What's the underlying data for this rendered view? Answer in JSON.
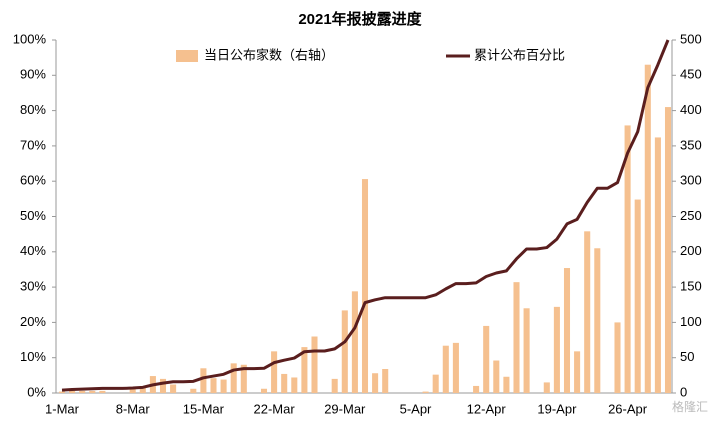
{
  "chart_data": {
    "type": "combo",
    "title": "2021年报披露进度",
    "watermark": "格隆汇",
    "categories": [
      "1-Mar",
      null,
      null,
      null,
      null,
      null,
      null,
      "8-Mar",
      null,
      null,
      null,
      null,
      null,
      null,
      "15-Mar",
      null,
      null,
      null,
      null,
      null,
      null,
      "22-Mar",
      null,
      null,
      null,
      null,
      null,
      null,
      "29-Mar",
      null,
      null,
      null,
      null,
      null,
      null,
      "5-Apr",
      null,
      null,
      null,
      null,
      null,
      null,
      "12-Apr",
      null,
      null,
      null,
      null,
      null,
      null,
      "19-Apr",
      null,
      null,
      null,
      null,
      null,
      null,
      "26-Apr",
      null,
      null,
      null,
      null
    ],
    "series": [
      {
        "name": "当日公布家数（右轴）",
        "type": "bar",
        "axis": "y2",
        "color": "#f5c08f",
        "values": [
          2,
          3,
          3,
          3,
          3,
          0,
          0,
          6,
          8,
          24,
          20,
          12,
          0,
          6,
          35,
          21,
          19,
          42,
          40,
          0,
          6,
          59,
          27,
          22,
          65,
          80,
          0,
          20,
          117,
          144,
          303,
          28,
          34,
          0,
          0,
          0,
          2,
          26,
          67,
          71,
          0,
          10,
          95,
          46,
          23,
          157,
          120,
          0,
          15,
          122,
          177,
          59,
          229,
          205,
          0,
          100,
          379,
          274,
          465,
          362,
          405
        ]
      },
      {
        "name": "累计公布百分比",
        "type": "line",
        "axis": "y",
        "color": "#5a1e1e",
        "values": [
          0.8,
          1.0,
          1.1,
          1.2,
          1.3,
          1.3,
          1.3,
          1.4,
          1.6,
          2.3,
          2.8,
          3.2,
          3.2,
          3.3,
          4.3,
          4.8,
          5.3,
          6.5,
          6.9,
          6.9,
          7.0,
          8.6,
          9.3,
          9.9,
          11.7,
          11.9,
          11.9,
          12.5,
          14.5,
          18.5,
          25.6,
          26.4,
          27.0,
          27.0,
          27.0,
          27.0,
          27.0,
          27.8,
          29.5,
          31.0,
          31.0,
          31.2,
          33.0,
          34.0,
          34.6,
          38.0,
          40.8,
          40.8,
          41.2,
          43.6,
          47.9,
          49.2,
          54.0,
          58.0,
          58.0,
          59.6,
          68.0,
          74.0,
          86.5,
          93.0,
          100
        ]
      }
    ],
    "ylim": [
      0,
      100
    ],
    "yticks": [
      {
        "value": 0,
        "label": "0%"
      },
      {
        "value": 10,
        "label": "10%"
      },
      {
        "value": 20,
        "label": "20%"
      },
      {
        "value": 30,
        "label": "30%"
      },
      {
        "value": 40,
        "label": "40%"
      },
      {
        "value": 50,
        "label": "50%"
      },
      {
        "value": 60,
        "label": "60%"
      },
      {
        "value": 70,
        "label": "70%"
      },
      {
        "value": 80,
        "label": "80%"
      },
      {
        "value": 90,
        "label": "90%"
      },
      {
        "value": 100,
        "label": "100%"
      }
    ],
    "y2lim": [
      0,
      500
    ],
    "y2ticks": [
      0,
      50,
      100,
      150,
      200,
      250,
      300,
      350,
      400,
      450,
      500
    ],
    "legend": "top"
  }
}
